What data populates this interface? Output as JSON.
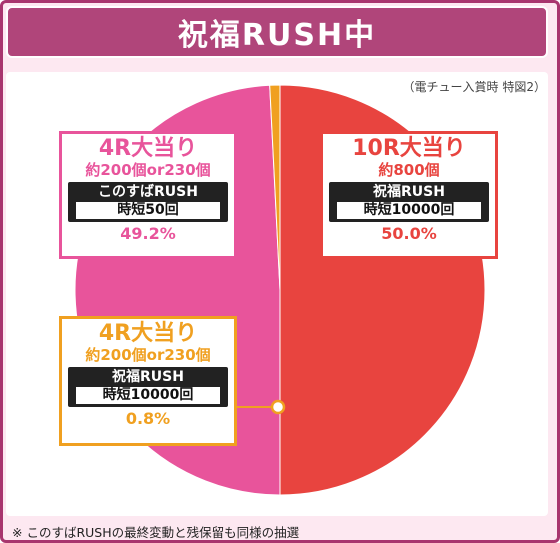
{
  "title": "祝福RUSH中",
  "note": "（電チュー入賞時 特図2）",
  "footnote": "※ このすばRUSHの最終変動と残保留も同様の抽選",
  "segments": [
    {
      "head": "10R大当り",
      "sub": "約800個",
      "rush": "祝福RUSH",
      "time": "時短10000回",
      "pct": "50.0%",
      "value": 50.0,
      "color": "#e8443f"
    },
    {
      "head": "4R大当り",
      "sub": "約200個or230個",
      "rush": "このすばRUSH",
      "time": "時短50回",
      "pct": "49.2%",
      "value": 49.2,
      "color": "#e8549b"
    },
    {
      "head": "4R大当り",
      "sub": "約200個or230個",
      "rush": "祝福RUSH",
      "time": "時短10000回",
      "pct": "0.8%",
      "value": 0.8,
      "color": "#f0a020"
    }
  ]
}
